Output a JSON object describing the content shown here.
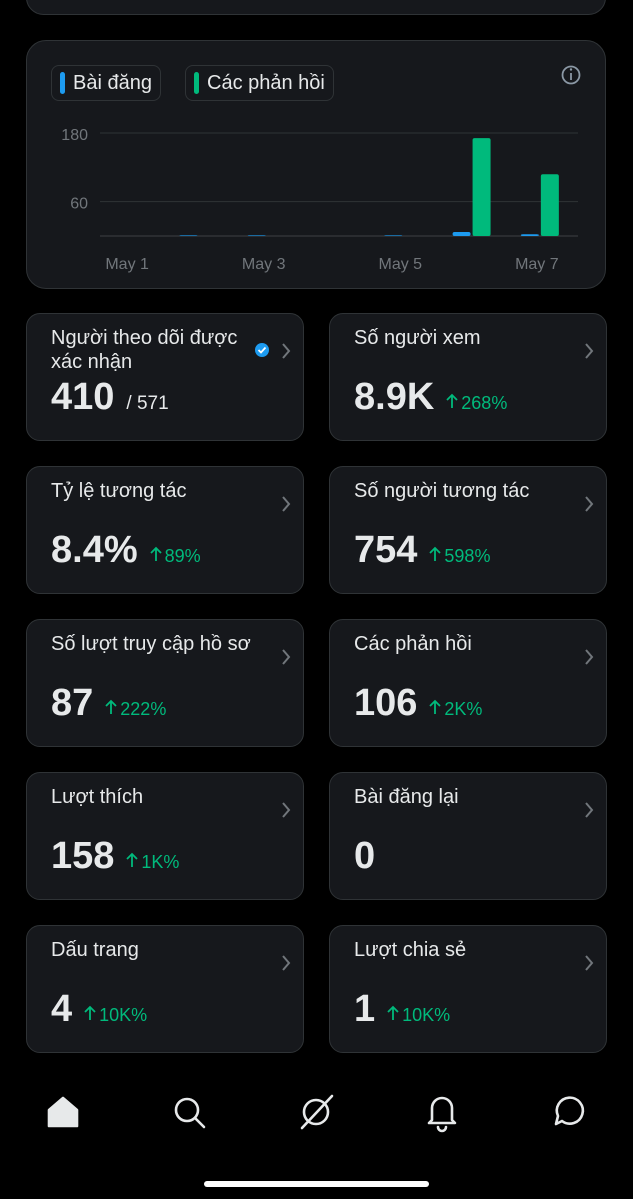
{
  "chart_data": {
    "type": "bar",
    "categories": [
      "May 1",
      null,
      "May 3",
      null,
      "May 5",
      null,
      "May 7"
    ],
    "series": [
      {
        "name": "Bài đăng",
        "color": "#1d9bf0",
        "values": [
          0,
          1,
          1,
          0,
          1,
          7,
          3
        ]
      },
      {
        "name": "Các phản hồi",
        "color": "#00ba7c",
        "values": [
          0,
          0,
          0,
          0,
          0,
          171,
          108
        ]
      }
    ],
    "ylim": [
      0,
      180
    ],
    "yticks": [
      60,
      180
    ],
    "grid": true
  },
  "cards": [
    {
      "title": "Người theo dõi được xác nhận",
      "value": "410",
      "total": "/ 571"
    },
    {
      "title": "Số người xem",
      "value": "8.9K",
      "change": "268%"
    },
    {
      "title": "Tỷ lệ tương tác",
      "value": "8.4%",
      "change": "89%"
    },
    {
      "title": "Số người tương tác",
      "value": "754",
      "change": "598%"
    },
    {
      "title": "Số lượt truy cập hồ sơ",
      "value": "87",
      "change": "222%"
    },
    {
      "title": "Các phản hồi",
      "value": "106",
      "change": "2K%"
    },
    {
      "title": "Lượt thích",
      "value": "158",
      "change": "1K%"
    },
    {
      "title": "Bài đăng lại",
      "value": "0"
    },
    {
      "title": "Dấu trang",
      "value": "4",
      "change": "10K%"
    },
    {
      "title": "Lượt chia sẻ",
      "value": "1",
      "change": "10K%"
    }
  ]
}
